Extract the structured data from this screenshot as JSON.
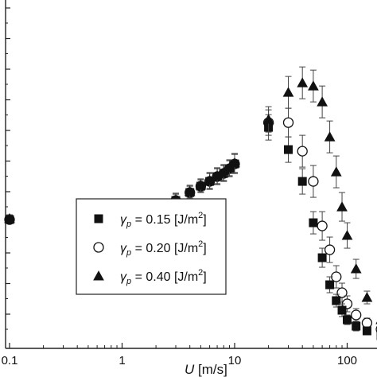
{
  "chart_data": {
    "type": "scatter",
    "title": "",
    "xlabel_var": "U",
    "xlabel_unit": " [m/s]",
    "ylabel": "",
    "x_scale": "log",
    "xlim": [
      0.1,
      200
    ],
    "ylim": [
      0,
      1
    ],
    "x_ticks": [
      "0.1",
      "1",
      "10",
      "100"
    ],
    "grid": false,
    "legend_position": "lower-left",
    "series": [
      {
        "label_symbol": "γ",
        "label_sub": "p",
        "label_text": " = 0.15 [J/m",
        "label_sup": "2",
        "label_close": "]",
        "marker": "square-filled",
        "x": [
          0.1,
          0.5,
          1,
          2,
          3,
          4,
          5,
          6,
          7,
          8,
          9,
          10,
          20,
          30,
          40,
          50,
          60,
          70,
          80,
          90,
          100,
          120,
          150,
          200
        ],
        "y": [
          0.395,
          0.396,
          0.41,
          0.43,
          0.455,
          0.48,
          0.5,
          0.515,
          0.53,
          0.54,
          0.555,
          0.57,
          0.685,
          0.615,
          0.515,
          0.385,
          0.275,
          0.19,
          0.14,
          0.11,
          0.08,
          0.06,
          0.045,
          0.03
        ],
        "err": [
          0.012,
          0.012,
          0.015,
          0.015,
          0.02,
          0.02,
          0.02,
          0.025,
          0.025,
          0.025,
          0.025,
          0.03,
          0.04,
          0.04,
          0.04,
          0.035,
          0.03,
          0.025,
          0.02,
          0.02,
          0.015,
          0.015,
          0.01,
          0.01
        ]
      },
      {
        "label_symbol": "γ",
        "label_sub": "p",
        "label_text": " = 0.20 [J/m",
        "label_sup": "2",
        "label_close": "]",
        "marker": "circle-open",
        "x": [
          0.1,
          0.5,
          1,
          2,
          3,
          4,
          5,
          6,
          7,
          8,
          9,
          10,
          20,
          30,
          40,
          50,
          60,
          70,
          80,
          90,
          100,
          120,
          150,
          200
        ],
        "y": [
          0.395,
          0.396,
          0.41,
          0.43,
          0.455,
          0.48,
          0.5,
          0.515,
          0.53,
          0.54,
          0.555,
          0.57,
          0.7,
          0.7,
          0.61,
          0.515,
          0.375,
          0.3,
          0.215,
          0.165,
          0.13,
          0.095,
          0.07,
          0.05
        ],
        "err": [
          0.012,
          0.012,
          0.015,
          0.015,
          0.02,
          0.02,
          0.02,
          0.025,
          0.025,
          0.025,
          0.025,
          0.03,
          0.04,
          0.045,
          0.05,
          0.05,
          0.045,
          0.04,
          0.035,
          0.03,
          0.025,
          0.02,
          0.015,
          0.01
        ]
      },
      {
        "label_symbol": "γ",
        "label_sub": "p",
        "label_text": " = 0.40 [J/m",
        "label_sup": "2",
        "label_close": "]",
        "marker": "triangle-filled",
        "x": [
          0.1,
          0.5,
          1,
          2,
          3,
          4,
          5,
          6,
          7,
          8,
          9,
          10,
          20,
          30,
          40,
          50,
          60,
          70,
          80,
          90,
          100,
          120,
          150,
          200
        ],
        "y": [
          0.398,
          0.399,
          0.413,
          0.433,
          0.458,
          0.483,
          0.503,
          0.518,
          0.533,
          0.543,
          0.558,
          0.573,
          0.71,
          0.795,
          0.825,
          0.815,
          0.765,
          0.655,
          0.545,
          0.435,
          0.345,
          0.24,
          0.15,
          0.08
        ],
        "err": [
          0.012,
          0.012,
          0.015,
          0.015,
          0.02,
          0.02,
          0.02,
          0.025,
          0.025,
          0.025,
          0.025,
          0.03,
          0.04,
          0.05,
          0.05,
          0.05,
          0.05,
          0.05,
          0.05,
          0.045,
          0.04,
          0.03,
          0.02,
          0.015
        ]
      }
    ]
  }
}
